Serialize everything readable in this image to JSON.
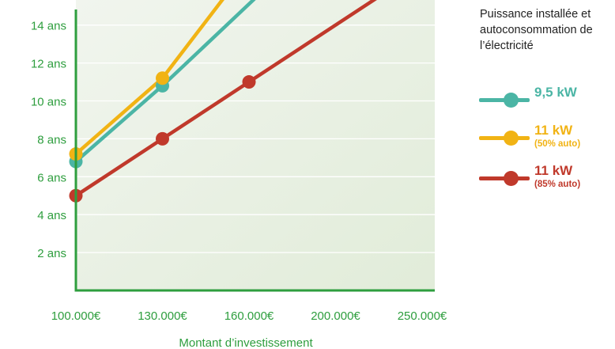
{
  "chart_data": {
    "type": "line",
    "title": "",
    "xlabel": "Montant d’investissement",
    "ylabel": "",
    "x_ticks": [
      "100.000€",
      "130.000€",
      "160.000€",
      "200.000€",
      "250.000€"
    ],
    "y_ticks": [
      "2 ans",
      "4 ans",
      "6 ans",
      "8 ans",
      "10 ans",
      "12 ans",
      "14 ans"
    ],
    "y_tick_values": [
      2,
      4,
      6,
      8,
      10,
      12,
      14
    ],
    "ylim": [
      0,
      15.5
    ],
    "grid": true,
    "legend_title": "Puissance installée et autoconsommation de l’électricité",
    "legend_position": "right",
    "series": [
      {
        "name": "9,5 kW",
        "note": "",
        "color": "#4bb5a5",
        "x": [
          0,
          1
        ],
        "y": [
          6.8,
          10.8
        ],
        "line_end": [
          2.09,
          15.5
        ]
      },
      {
        "name": "11 kW",
        "note": "(50% auto)",
        "color": "#f1b314",
        "x": [
          0,
          1
        ],
        "y": [
          7.2,
          11.2
        ],
        "line_end": [
          1.72,
          15.5
        ]
      },
      {
        "name": "11 kW",
        "note": "(85% auto)",
        "color": "#c0392b",
        "x": [
          0,
          1,
          2
        ],
        "y": [
          5,
          8,
          11
        ],
        "line_end": [
          3.5,
          15.5
        ]
      }
    ]
  },
  "colors": {
    "axis": "#2e9e3e",
    "tick_text": "#2e9e3e",
    "plot_bg": "#e9f0e3",
    "grid": "#ffffff",
    "legend_title": "#222222"
  }
}
